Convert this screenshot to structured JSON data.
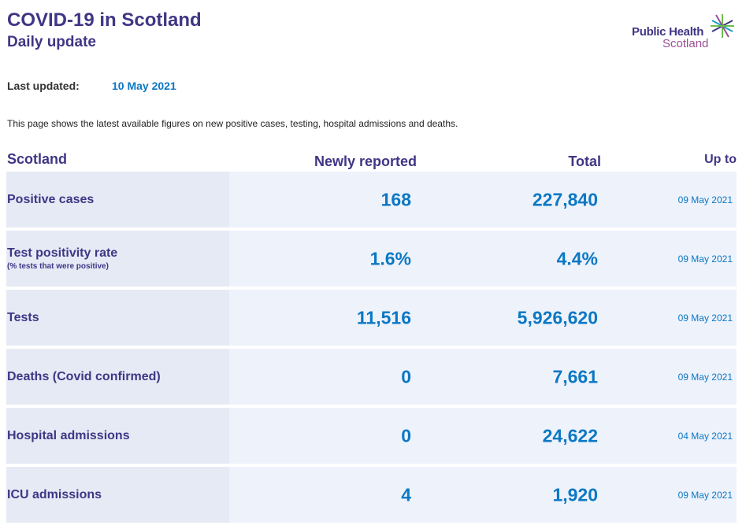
{
  "header": {
    "title": "COVID-19 in Scotland",
    "subtitle": "Daily update",
    "logo_line1": "Public Health",
    "logo_line2": "Scotland"
  },
  "updated": {
    "label": "Last updated:",
    "value": "10 May 2021"
  },
  "intro": "This page shows the latest available figures on new positive cases, testing, hospital admissions and deaths.",
  "table": {
    "columns": {
      "region": "Scotland",
      "new": "Newly reported",
      "total": "Total",
      "upto": "Up to"
    },
    "rows": [
      {
        "label": "Positive cases",
        "sub": "",
        "new": "168",
        "total": "227,840",
        "date": "09 May 2021"
      },
      {
        "label": "Test positivity rate",
        "sub": "(% tests that were positive)",
        "new": "1.6%",
        "total": "4.4%",
        "date": "09 May 2021"
      },
      {
        "label": "Tests",
        "sub": "",
        "new": "11,516",
        "total": "5,926,620",
        "date": "09 May 2021"
      },
      {
        "label": "Deaths (Covid confirmed)",
        "sub": "",
        "new": "0",
        "total": "7,661",
        "date": "09 May 2021"
      },
      {
        "label": "Hospital admissions",
        "sub": "",
        "new": "0",
        "total": "24,622",
        "date": "04 May 2021"
      },
      {
        "label": "ICU admissions",
        "sub": "",
        "new": "4",
        "total": "1,920",
        "date": "09 May 2021"
      }
    ]
  },
  "colors": {
    "brand_purple": "#3f3685",
    "value_blue": "#0b78c4",
    "logo_magenta": "#9b4f96",
    "logo_green": "#6cc04a"
  }
}
